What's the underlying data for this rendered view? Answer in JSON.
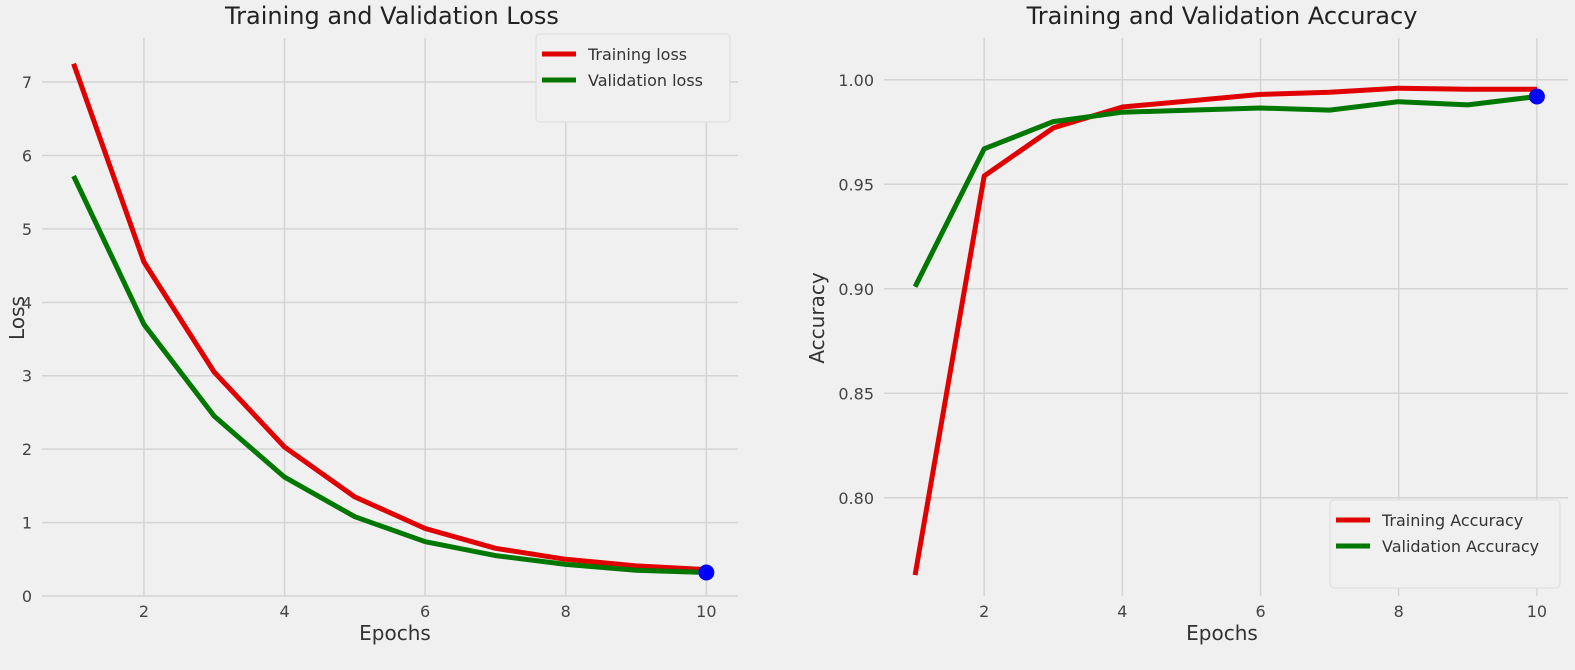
{
  "chart_data": [
    {
      "type": "line",
      "title": "Training and Validation Loss",
      "xlabel": "Epochs",
      "ylabel": "Loss",
      "xlim": [
        0.55,
        10.45
      ],
      "ylim": [
        0,
        7.6
      ],
      "xticks": [
        2,
        4,
        6,
        8,
        10
      ],
      "yticks": [
        0,
        1,
        2,
        3,
        4,
        5,
        6,
        7
      ],
      "ytick_labels": [
        "0",
        "1",
        "2",
        "3",
        "4",
        "5",
        "6",
        "7"
      ],
      "grid": true,
      "legend_position": "top-right",
      "x": [
        1,
        2,
        3,
        4,
        5,
        6,
        7,
        8,
        9,
        10
      ],
      "series": [
        {
          "name": "Training loss",
          "color": "#e00000",
          "values": [
            7.25,
            4.55,
            3.05,
            2.03,
            1.35,
            0.92,
            0.65,
            0.5,
            0.41,
            0.36
          ]
        },
        {
          "name": "Validation loss",
          "color": "#007800",
          "values": [
            5.72,
            3.7,
            2.45,
            1.62,
            1.08,
            0.74,
            0.55,
            0.43,
            0.35,
            0.32
          ]
        }
      ],
      "best_point": {
        "x": 10,
        "y": 0.32,
        "color": "#0000ff"
      }
    },
    {
      "type": "line",
      "title": "Training and Validation Accuracy",
      "xlabel": "Epochs",
      "ylabel": "Accuracy",
      "xlim": [
        0.55,
        10.45
      ],
      "ylim": [
        0.753,
        1.02
      ],
      "xticks": [
        2,
        4,
        6,
        8,
        10
      ],
      "yticks": [
        0.8,
        0.85,
        0.9,
        0.95,
        1.0
      ],
      "ytick_labels": [
        "0.80",
        "0.85",
        "0.90",
        "0.95",
        "1.00"
      ],
      "grid": true,
      "legend_position": "bottom-right",
      "x": [
        1,
        2,
        3,
        4,
        5,
        6,
        7,
        8,
        9,
        10
      ],
      "series": [
        {
          "name": "Training Accuracy",
          "color": "#e00000",
          "values": [
            0.763,
            0.954,
            0.977,
            0.987,
            0.99,
            0.993,
            0.994,
            0.996,
            0.9955,
            0.9955
          ]
        },
        {
          "name": "Validation Accuracy",
          "color": "#007800",
          "values": [
            0.901,
            0.967,
            0.98,
            0.9845,
            0.9855,
            0.9865,
            0.9855,
            0.9895,
            0.988,
            0.992
          ]
        }
      ],
      "best_point": {
        "x": 10,
        "y": 0.992,
        "color": "#0000ff"
      }
    }
  ]
}
